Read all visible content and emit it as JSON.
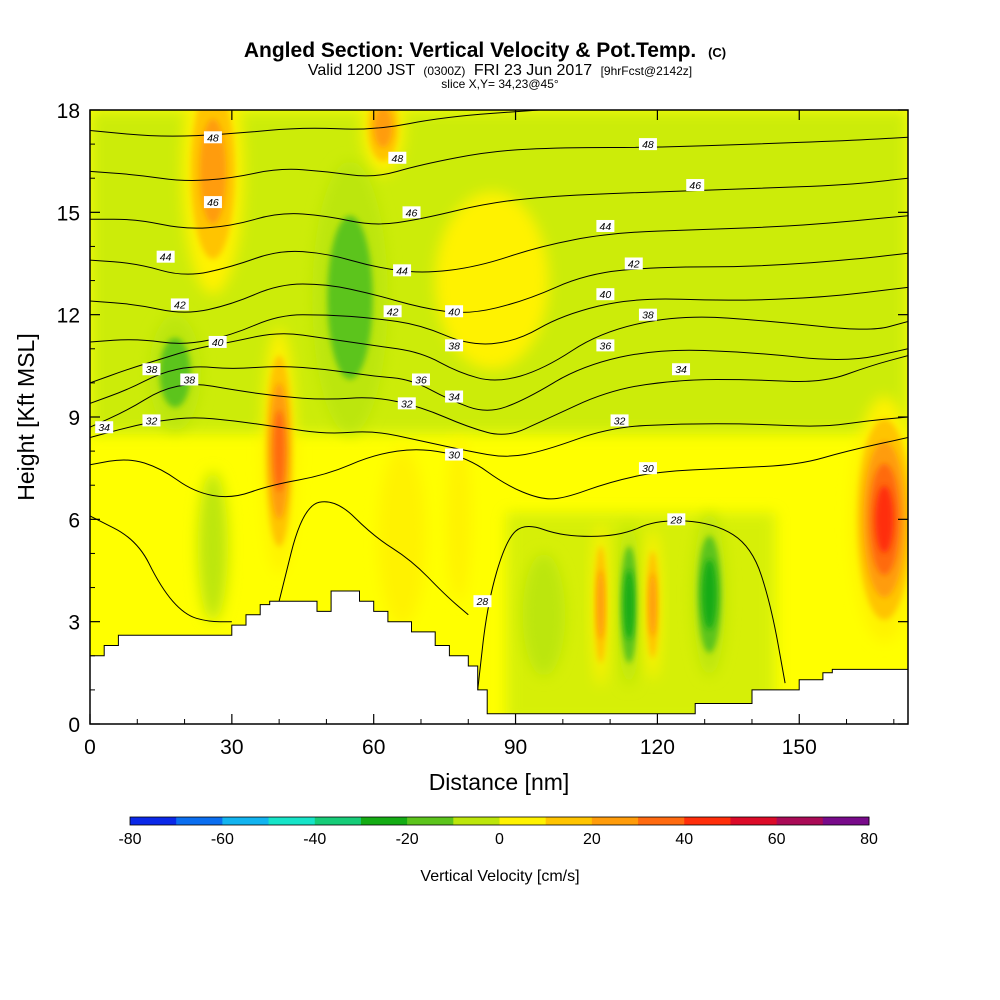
{
  "chart_data": {
    "type": "heatmap",
    "title": "Angled Section: Vertical Velocity & Pot.Temp.",
    "title_unit": "(C)",
    "subtitle": {
      "prefix": "Valid 1200 JST",
      "utc": "(0300Z)",
      "date": "FRI 23 Jun 2017",
      "forecast": "[9hrFcst@2142z]"
    },
    "slice_label": "slice X,Y= 34,23@45°",
    "xlabel": "Distance [nm]",
    "ylabel": "Height [Kft MSL]",
    "xlim": [
      0,
      173
    ],
    "ylim": [
      0,
      18
    ],
    "x_ticks": [
      "0",
      "30",
      "60",
      "90",
      "120",
      "150"
    ],
    "y_ticks": [
      "0",
      "3",
      "6",
      "9",
      "12",
      "15",
      "18"
    ],
    "colorbar": {
      "label": "Vertical Velocity [cm/s]",
      "tick_labels": [
        "-80",
        "-60",
        "-40",
        "-20",
        "0",
        "20",
        "40",
        "60",
        "80"
      ],
      "range": [
        -80,
        80
      ],
      "colors": [
        "#0a28e8",
        "#0a6ef0",
        "#12b4f0",
        "#16e4c8",
        "#16cc78",
        "#14ac14",
        "#5cc41c",
        "#bce60a",
        "#fff200",
        "#ffc400",
        "#ff9c0a",
        "#ff6a10",
        "#ff2e0a",
        "#dc0a28",
        "#aa0a56",
        "#780a8a"
      ]
    },
    "terrain_kft": [
      [
        0,
        2.0
      ],
      [
        3,
        2.0
      ],
      [
        3,
        2.3
      ],
      [
        6,
        2.3
      ],
      [
        6,
        2.6
      ],
      [
        30,
        2.6
      ],
      [
        30,
        2.9
      ],
      [
        33,
        2.9
      ],
      [
        33,
        3.2
      ],
      [
        36,
        3.2
      ],
      [
        36,
        3.5
      ],
      [
        38,
        3.5
      ],
      [
        38,
        3.6
      ],
      [
        48,
        3.6
      ],
      [
        48,
        3.3
      ],
      [
        51,
        3.3
      ],
      [
        51,
        3.9
      ],
      [
        57,
        3.9
      ],
      [
        57,
        3.6
      ],
      [
        60,
        3.6
      ],
      [
        60,
        3.3
      ],
      [
        63,
        3.3
      ],
      [
        63,
        3.0
      ],
      [
        68,
        3.0
      ],
      [
        68,
        2.7
      ],
      [
        73,
        2.7
      ],
      [
        73,
        2.3
      ],
      [
        76,
        2.3
      ],
      [
        76,
        2.0
      ],
      [
        80,
        2.0
      ],
      [
        80,
        1.7
      ],
      [
        82,
        1.7
      ],
      [
        82,
        1.0
      ],
      [
        84,
        1.0
      ],
      [
        84,
        0.3
      ],
      [
        128,
        0.3
      ],
      [
        128,
        0.6
      ],
      [
        140,
        0.6
      ],
      [
        140,
        1.0
      ],
      [
        150,
        1.0
      ],
      [
        150,
        1.3
      ],
      [
        155,
        1.3
      ],
      [
        155,
        1.5
      ],
      [
        157,
        1.5
      ],
      [
        157,
        1.6
      ],
      [
        173,
        1.6
      ]
    ],
    "velocity_cells": [
      {
        "x": 26,
        "y": 16.2,
        "rx": 6.5,
        "ry": 3.6,
        "value": 35
      },
      {
        "x": 40,
        "y": 8.0,
        "rx": 3.6,
        "ry": 3.6,
        "value": 45
      },
      {
        "x": 62,
        "y": 17.5,
        "rx": 4.5,
        "ry": 1.4,
        "value": 35
      },
      {
        "x": 168,
        "y": 6.0,
        "rx": 7.0,
        "ry": 3.6,
        "value": 50
      },
      {
        "x": 66,
        "y": 5.5,
        "rx": 5.0,
        "ry": 2.6,
        "value": 15
      },
      {
        "x": 78,
        "y": 6.0,
        "rx": 2.5,
        "ry": 2.4,
        "value": 12
      },
      {
        "x": 55,
        "y": 12.5,
        "rx": 8.0,
        "ry": 4.0,
        "value": -25
      },
      {
        "x": 18,
        "y": 10.3,
        "rx": 5.5,
        "ry": 1.7,
        "value": -20
      },
      {
        "x": 26,
        "y": 5.2,
        "rx": 3.2,
        "ry": 2.2,
        "value": -15
      },
      {
        "x": 96,
        "y": 3.2,
        "rx": 4.5,
        "ry": 1.8,
        "value": -15
      },
      {
        "x": 114,
        "y": 3.5,
        "rx": 2.5,
        "ry": 2.4,
        "value": -35
      },
      {
        "x": 131,
        "y": 3.8,
        "rx": 3.5,
        "ry": 2.4,
        "value": -30
      },
      {
        "x": 108,
        "y": 3.5,
        "rx": 1.8,
        "ry": 2.4,
        "value": 30
      },
      {
        "x": 119,
        "y": 3.5,
        "rx": 1.8,
        "ry": 2.2,
        "value": 30
      },
      {
        "x": 85,
        "y": 13.0,
        "rx": 12.0,
        "ry": 2.6,
        "value": 5
      }
    ],
    "isentropes": [
      {
        "theta": 28,
        "label": "28",
        "points": [
          [
            0,
            6.1
          ],
          [
            10,
            5.4
          ],
          [
            15,
            4.0
          ],
          [
            20,
            3.2
          ],
          [
            25,
            3.0
          ],
          [
            30,
            3.0
          ]
        ]
      },
      {
        "theta": 28,
        "label": "28",
        "points": [
          [
            40,
            3.6
          ],
          [
            45,
            6.4
          ],
          [
            52,
            6.6
          ],
          [
            60,
            5.5
          ],
          [
            68,
            4.8
          ],
          [
            75,
            3.8
          ],
          [
            80,
            3.2
          ]
        ]
      },
      {
        "theta": 28,
        "label": "28",
        "points": [
          [
            82,
            1.0
          ],
          [
            84,
            3.5
          ],
          [
            88,
            5.4
          ],
          [
            92,
            5.9
          ],
          [
            100,
            5.5
          ],
          [
            112,
            5.5
          ],
          [
            120,
            6.0
          ],
          [
            132,
            5.9
          ],
          [
            140,
            5.2
          ],
          [
            144,
            3.5
          ],
          [
            147,
            1.2
          ]
        ]
      },
      {
        "theta": 30,
        "label": "30",
        "points": [
          [
            0,
            7.6
          ],
          [
            8,
            7.8
          ],
          [
            15,
            7.5
          ],
          [
            22,
            6.8
          ],
          [
            30,
            6.6
          ],
          [
            38,
            7.0
          ],
          [
            50,
            7.3
          ],
          [
            60,
            7.9
          ],
          [
            70,
            8.1
          ],
          [
            80,
            7.8
          ],
          [
            88,
            7.0
          ],
          [
            95,
            6.6
          ],
          [
            100,
            6.6
          ],
          [
            110,
            7.1
          ],
          [
            120,
            7.4
          ],
          [
            135,
            7.5
          ],
          [
            150,
            7.6
          ],
          [
            160,
            8.0
          ],
          [
            173,
            8.4
          ]
        ]
      },
      {
        "theta": 32,
        "label": "32",
        "points": [
          [
            0,
            8.4
          ],
          [
            8,
            8.7
          ],
          [
            15,
            8.9
          ],
          [
            22,
            9.0
          ],
          [
            30,
            8.9
          ],
          [
            40,
            8.7
          ],
          [
            50,
            8.5
          ],
          [
            60,
            8.6
          ],
          [
            70,
            8.3
          ],
          [
            80,
            8.0
          ],
          [
            88,
            7.8
          ],
          [
            96,
            8.0
          ],
          [
            110,
            8.7
          ],
          [
            125,
            8.8
          ],
          [
            140,
            8.8
          ],
          [
            155,
            8.7
          ],
          [
            165,
            8.9
          ],
          [
            173,
            9.0
          ]
        ]
      },
      {
        "theta": 34,
        "label": "34",
        "points": [
          [
            0,
            8.7
          ],
          [
            8,
            9.2
          ],
          [
            15,
            9.8
          ],
          [
            22,
            10.0
          ],
          [
            30,
            9.8
          ],
          [
            40,
            9.6
          ],
          [
            50,
            9.5
          ],
          [
            60,
            9.6
          ],
          [
            70,
            9.3
          ],
          [
            80,
            8.7
          ],
          [
            88,
            8.4
          ],
          [
            96,
            8.9
          ],
          [
            110,
            9.8
          ],
          [
            125,
            10.1
          ],
          [
            140,
            10.1
          ],
          [
            155,
            10.0
          ],
          [
            165,
            10.5
          ],
          [
            173,
            10.8
          ]
        ]
      },
      {
        "theta": 36,
        "label": "36",
        "points": [
          [
            0,
            9.4
          ],
          [
            8,
            9.8
          ],
          [
            15,
            10.3
          ],
          [
            22,
            10.5
          ],
          [
            30,
            10.4
          ],
          [
            40,
            10.5
          ],
          [
            50,
            10.4
          ],
          [
            60,
            10.2
          ],
          [
            68,
            10.1
          ],
          [
            76,
            9.5
          ],
          [
            84,
            9.1
          ],
          [
            92,
            9.5
          ],
          [
            104,
            10.5
          ],
          [
            120,
            11.0
          ],
          [
            140,
            10.9
          ],
          [
            160,
            10.6
          ],
          [
            173,
            11.0
          ]
        ]
      },
      {
        "theta": 38,
        "label": "38",
        "points": [
          [
            0,
            10.0
          ],
          [
            8,
            10.4
          ],
          [
            15,
            10.7
          ],
          [
            22,
            11.0
          ],
          [
            30,
            11.2
          ],
          [
            40,
            11.5
          ],
          [
            50,
            11.3
          ],
          [
            60,
            11.1
          ],
          [
            70,
            10.9
          ],
          [
            78,
            10.3
          ],
          [
            86,
            10.0
          ],
          [
            96,
            10.4
          ],
          [
            108,
            11.5
          ],
          [
            125,
            12.0
          ],
          [
            145,
            11.8
          ],
          [
            165,
            11.5
          ],
          [
            173,
            11.8
          ]
        ]
      },
      {
        "theta": 40,
        "label": "40",
        "points": [
          [
            0,
            11.2
          ],
          [
            10,
            11.3
          ],
          [
            20,
            11.1
          ],
          [
            30,
            11.4
          ],
          [
            40,
            12.0
          ],
          [
            50,
            12.0
          ],
          [
            60,
            11.9
          ],
          [
            70,
            11.7
          ],
          [
            80,
            11.1
          ],
          [
            90,
            11.2
          ],
          [
            100,
            12.0
          ],
          [
            115,
            12.5
          ],
          [
            135,
            12.4
          ],
          [
            155,
            12.5
          ],
          [
            173,
            12.8
          ]
        ]
      },
      {
        "theta": 42,
        "label": "42",
        "points": [
          [
            0,
            12.4
          ],
          [
            10,
            12.3
          ],
          [
            20,
            12.0
          ],
          [
            30,
            12.3
          ],
          [
            40,
            12.9
          ],
          [
            50,
            12.9
          ],
          [
            60,
            12.6
          ],
          [
            70,
            12.2
          ],
          [
            80,
            12.0
          ],
          [
            92,
            12.4
          ],
          [
            105,
            13.2
          ],
          [
            120,
            13.4
          ],
          [
            140,
            13.4
          ],
          [
            160,
            13.6
          ],
          [
            173,
            13.8
          ]
        ]
      },
      {
        "theta": 44,
        "label": "44",
        "points": [
          [
            0,
            13.6
          ],
          [
            10,
            13.5
          ],
          [
            20,
            13.1
          ],
          [
            30,
            13.4
          ],
          [
            40,
            13.9
          ],
          [
            50,
            13.8
          ],
          [
            60,
            13.4
          ],
          [
            70,
            13.2
          ],
          [
            82,
            13.4
          ],
          [
            95,
            14.0
          ],
          [
            110,
            14.4
          ],
          [
            130,
            14.5
          ],
          [
            150,
            14.6
          ],
          [
            173,
            14.9
          ]
        ]
      },
      {
        "theta": 46,
        "label": "46",
        "points": [
          [
            0,
            14.8
          ],
          [
            10,
            14.8
          ],
          [
            20,
            14.5
          ],
          [
            30,
            14.6
          ],
          [
            40,
            15.0
          ],
          [
            50,
            14.9
          ],
          [
            60,
            14.6
          ],
          [
            70,
            14.8
          ],
          [
            85,
            15.3
          ],
          [
            100,
            15.5
          ],
          [
            120,
            15.6
          ],
          [
            140,
            15.7
          ],
          [
            160,
            15.8
          ],
          [
            173,
            16.0
          ]
        ]
      },
      {
        "theta": 48,
        "label": "48",
        "points": [
          [
            0,
            16.2
          ],
          [
            10,
            16.1
          ],
          [
            20,
            15.9
          ],
          [
            30,
            16.0
          ],
          [
            40,
            16.3
          ],
          [
            50,
            16.2
          ],
          [
            60,
            16.0
          ],
          [
            70,
            16.4
          ],
          [
            85,
            16.8
          ],
          [
            100,
            16.9
          ],
          [
            120,
            16.9
          ],
          [
            140,
            17.0
          ],
          [
            160,
            17.1
          ],
          [
            173,
            17.2
          ]
        ]
      },
      {
        "theta": 50,
        "label": "",
        "points": [
          [
            0,
            17.4
          ],
          [
            15,
            17.2
          ],
          [
            30,
            17.3
          ],
          [
            45,
            17.5
          ],
          [
            60,
            17.4
          ],
          [
            75,
            17.8
          ],
          [
            95,
            18.0
          ]
        ]
      }
    ],
    "isentrope_labels": [
      {
        "text": "48",
        "x": 26,
        "y": 17.2
      },
      {
        "text": "46",
        "x": 26,
        "y": 15.3
      },
      {
        "text": "44",
        "x": 16,
        "y": 13.7
      },
      {
        "text": "42",
        "x": 19,
        "y": 12.3
      },
      {
        "text": "40",
        "x": 27,
        "y": 11.2
      },
      {
        "text": "38",
        "x": 13,
        "y": 10.4
      },
      {
        "text": "38",
        "x": 21,
        "y": 10.1
      },
      {
        "text": "34",
        "x": 3,
        "y": 8.7
      },
      {
        "text": "32",
        "x": 13,
        "y": 8.9
      },
      {
        "text": "48",
        "x": 65,
        "y": 16.6
      },
      {
        "text": "46",
        "x": 68,
        "y": 15.0
      },
      {
        "text": "44",
        "x": 66,
        "y": 13.3
      },
      {
        "text": "42",
        "x": 64,
        "y": 12.1
      },
      {
        "text": "40",
        "x": 77,
        "y": 12.1
      },
      {
        "text": "38",
        "x": 77,
        "y": 11.1
      },
      {
        "text": "36",
        "x": 70,
        "y": 10.1
      },
      {
        "text": "34",
        "x": 77,
        "y": 9.6
      },
      {
        "text": "32",
        "x": 67,
        "y": 9.4
      },
      {
        "text": "30",
        "x": 77,
        "y": 7.9
      },
      {
        "text": "48",
        "x": 118,
        "y": 17.0
      },
      {
        "text": "46",
        "x": 128,
        "y": 15.8
      },
      {
        "text": "44",
        "x": 109,
        "y": 14.6
      },
      {
        "text": "42",
        "x": 115,
        "y": 13.5
      },
      {
        "text": "40",
        "x": 109,
        "y": 12.6
      },
      {
        "text": "38",
        "x": 118,
        "y": 12.0
      },
      {
        "text": "36",
        "x": 109,
        "y": 11.1
      },
      {
        "text": "34",
        "x": 125,
        "y": 10.4
      },
      {
        "text": "32",
        "x": 112,
        "y": 8.9
      },
      {
        "text": "30",
        "x": 118,
        "y": 7.5
      },
      {
        "text": "28",
        "x": 124,
        "y": 6.0
      },
      {
        "text": "28",
        "x": 83,
        "y": 3.6
      }
    ]
  }
}
